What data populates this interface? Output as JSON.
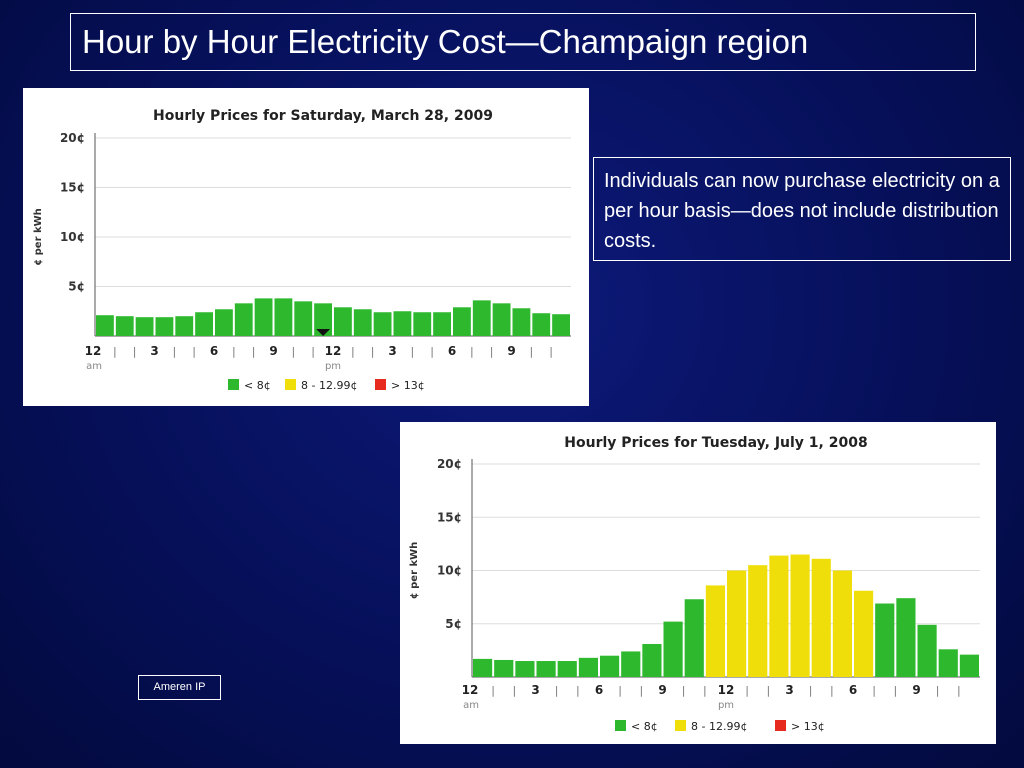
{
  "slide": {
    "title": "Hour by Hour Electricity Cost—Champaign region",
    "note": "Individuals can now purchase electricity on a per hour basis—does not include distribution costs.",
    "source": "Ameren IP"
  },
  "colors": {
    "background": "#06105a",
    "low": "#2db82d",
    "mid": "#f0de0a",
    "high": "#e62a1e"
  },
  "chart_data": [
    {
      "type": "bar",
      "title": "Hourly Prices for Saturday, March 28, 2009",
      "ylabel": "¢ per kWh",
      "ylim": [
        0,
        20
      ],
      "yticks": [
        "5¢",
        "10¢",
        "15¢",
        "20¢"
      ],
      "x_tick_labels": [
        "12",
        "|",
        "|",
        "3",
        "|",
        "|",
        "6",
        "|",
        "|",
        "9",
        "|",
        "|",
        "12",
        "|",
        "|",
        "3",
        "|",
        "|",
        "6",
        "|",
        "|",
        "9",
        "|",
        "|"
      ],
      "am_label": "am",
      "pm_label": "pm",
      "current_hour_marker": 11,
      "values": [
        2.1,
        2.0,
        1.9,
        1.9,
        2.0,
        2.4,
        2.7,
        3.3,
        3.8,
        3.8,
        3.5,
        3.3,
        2.9,
        2.7,
        2.4,
        2.5,
        2.4,
        2.4,
        2.9,
        3.6,
        3.3,
        2.8,
        2.3,
        2.2
      ],
      "legend": [
        "< 8¢",
        "8 - 12.99¢",
        "> 13¢"
      ],
      "grid": true
    },
    {
      "type": "bar",
      "title": "Hourly Prices for Tuesday, July 1, 2008",
      "ylabel": "¢ per kWh",
      "ylim": [
        0,
        20
      ],
      "yticks": [
        "5¢",
        "10¢",
        "15¢",
        "20¢"
      ],
      "x_tick_labels": [
        "12",
        "|",
        "|",
        "3",
        "|",
        "|",
        "6",
        "|",
        "|",
        "9",
        "|",
        "|",
        "12",
        "|",
        "|",
        "3",
        "|",
        "|",
        "6",
        "|",
        "|",
        "9",
        "|",
        "|"
      ],
      "am_label": "am",
      "pm_label": "pm",
      "values": [
        1.7,
        1.6,
        1.5,
        1.5,
        1.5,
        1.8,
        2.0,
        2.4,
        3.1,
        5.2,
        7.3,
        8.6,
        10.0,
        10.5,
        11.4,
        11.5,
        11.1,
        10.0,
        8.1,
        6.9,
        7.4,
        4.9,
        2.6,
        2.1
      ],
      "legend": [
        "< 8¢",
        "8 - 12.99¢",
        "> 13¢"
      ],
      "grid": true
    }
  ]
}
